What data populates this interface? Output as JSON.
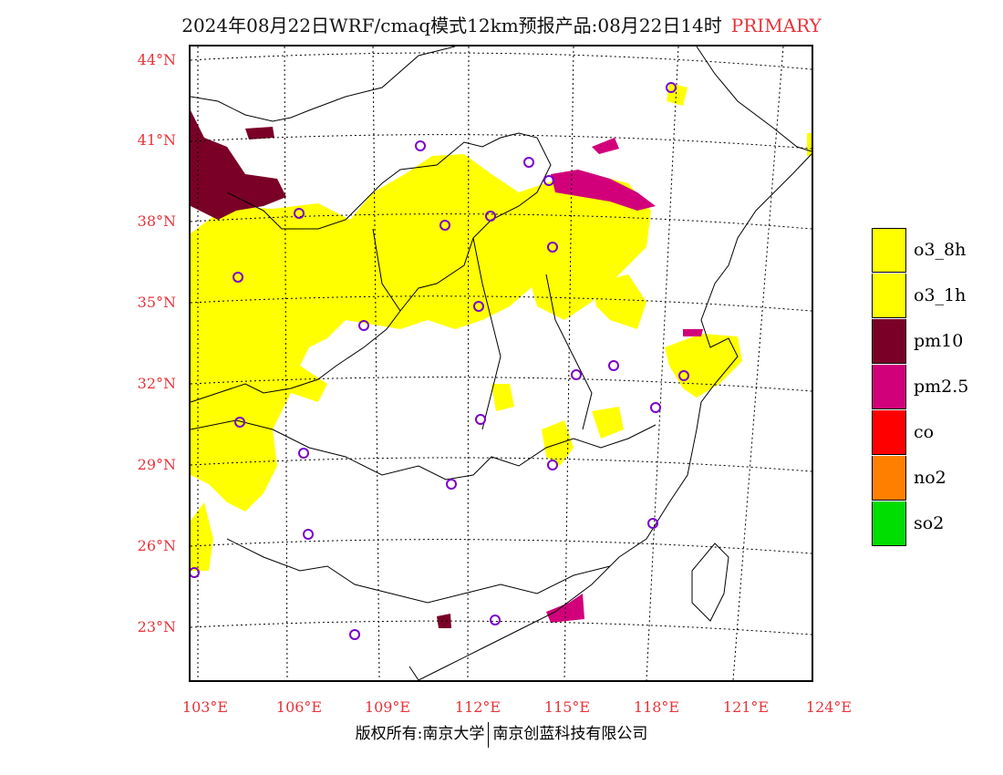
{
  "title": {
    "main": "2024年08月22日WRF/cmaq模式12km预报产品:08月22日14时",
    "tag": "PRIMARY",
    "tag_color": "#e8333a"
  },
  "axes": {
    "lat_labels": [
      "44°N",
      "41°N",
      "38°N",
      "35°N",
      "32°N",
      "29°N",
      "26°N",
      "23°N"
    ],
    "lon_labels": [
      "103°E",
      "106°E",
      "109°E",
      "112°E",
      "115°E",
      "118°E",
      "121°E",
      "124°E"
    ],
    "label_color": "#e8333a"
  },
  "legend": [
    {
      "label": "o3_8h",
      "color": "#ffff00"
    },
    {
      "label": "o3_1h",
      "color": "#ffff00"
    },
    {
      "label": "pm10",
      "color": "#7a0028"
    },
    {
      "label": "pm2.5",
      "color": "#d1007a"
    },
    {
      "label": "co",
      "color": "#ff0000"
    },
    {
      "label": "no2",
      "color": "#ff8000"
    },
    {
      "label": "so2",
      "color": "#00dd00"
    }
  ],
  "footer": {
    "left": "版权所有:南京大学",
    "right": "南京创蓝科技有限公司"
  }
}
